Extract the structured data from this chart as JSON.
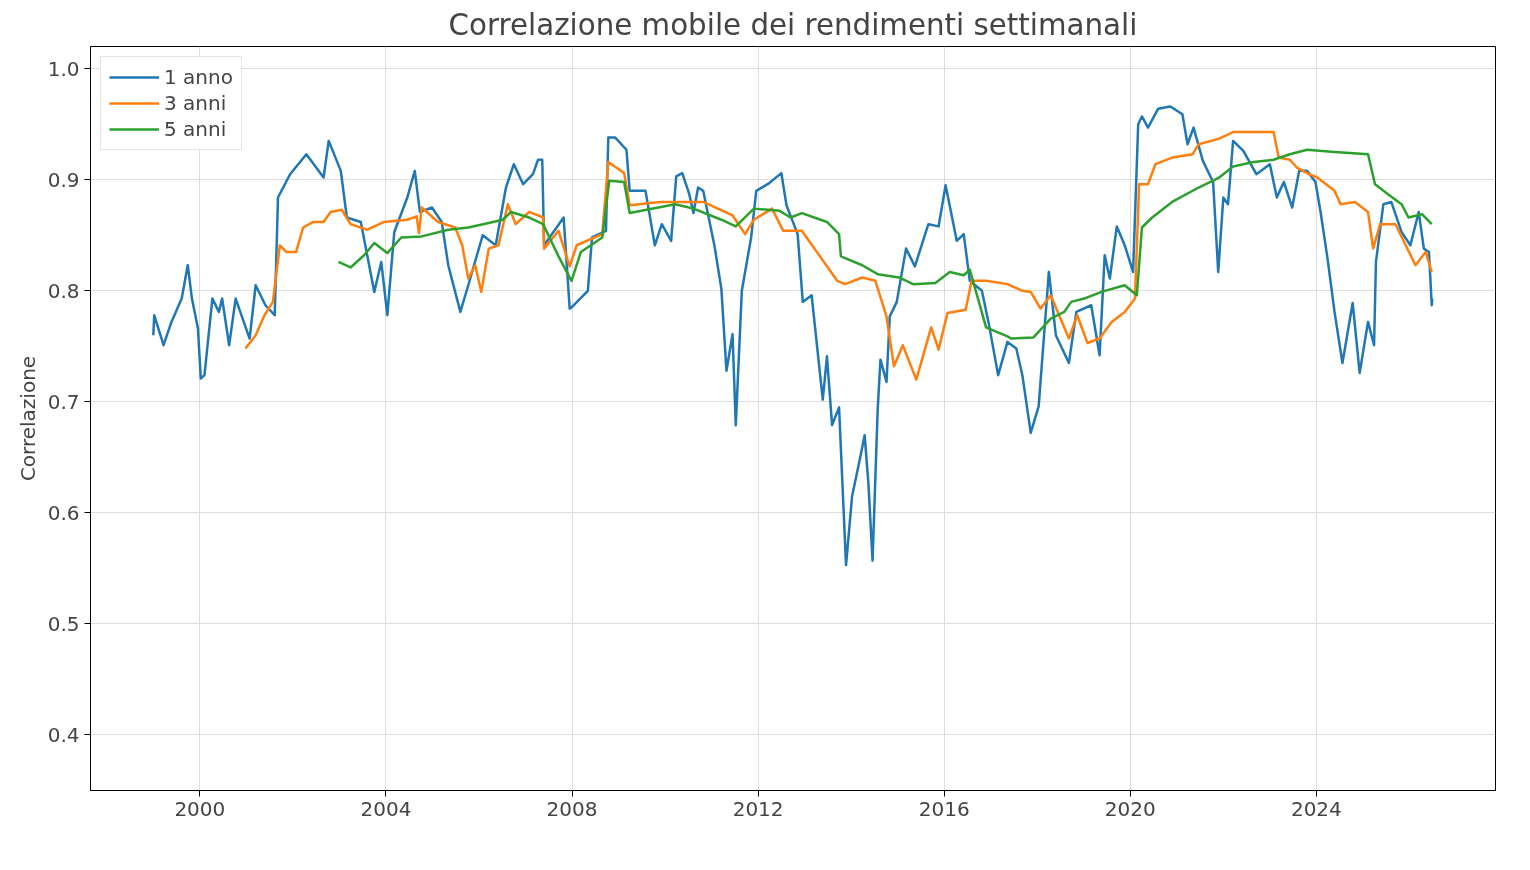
{
  "chart_data": {
    "type": "line",
    "title": "Correlazione mobile dei rendimenti settimanali",
    "ylabel": "Correlazione",
    "xlim": [
      1997.65,
      2027.85
    ],
    "xticks": [
      2000,
      2004,
      2008,
      2012,
      2016,
      2020,
      2024
    ],
    "ylim": [
      0.35,
      1.02
    ],
    "yticks": [
      0.4,
      0.5,
      0.6,
      0.7,
      0.8,
      0.9,
      {
        "value": 1.0,
        "label": "1.0"
      }
    ],
    "grid": true,
    "legend": "top left",
    "line_style": "solid",
    "series": [
      {
        "name": "1 anno",
        "color": "#1f77b4",
        "x": [
          1999.0,
          1999.02,
          1999.22,
          1999.39,
          1999.61,
          1999.74,
          1999.83,
          1999.96,
          2000.02,
          2000.1,
          2000.27,
          2000.41,
          2000.48,
          2000.63,
          2000.77,
          2001.07,
          2001.2,
          2001.41,
          2001.61,
          2001.68,
          2001.94,
          2002.29,
          2002.66,
          2002.77,
          2003.03,
          2003.16,
          2003.46,
          2003.75,
          2003.9,
          2004.03,
          2004.18,
          2004.46,
          2004.62,
          2004.73,
          2004.99,
          2005.2,
          2005.34,
          2005.6,
          2005.77,
          2006.08,
          2006.36,
          2006.58,
          2006.75,
          2006.95,
          2007.16,
          2007.27,
          2007.36,
          2007.4,
          2007.82,
          2007.95,
          2007.99,
          2008.34,
          2008.43,
          2008.73,
          2008.78,
          2008.93,
          2009.17,
          2009.24,
          2009.58,
          2009.78,
          2009.93,
          2010.13,
          2010.24,
          2010.37,
          2010.52,
          2010.61,
          2010.71,
          2010.82,
          2011.06,
          2011.21,
          2011.32,
          2011.45,
          2011.52,
          2011.65,
          2011.85,
          2011.96,
          2012.24,
          2012.5,
          2012.61,
          2012.85,
          2012.96,
          2013.15,
          2013.28,
          2013.39,
          2013.48,
          2013.59,
          2013.74,
          2013.89,
          2014.02,
          2014.18,
          2014.29,
          2014.37,
          2014.46,
          2014.57,
          2014.63,
          2014.76,
          2014.83,
          2014.98,
          2015.18,
          2015.37,
          2015.66,
          2015.88,
          2016.03,
          2016.27,
          2016.42,
          2016.55,
          2016.81,
          2016.96,
          2017.16,
          2017.36,
          2017.55,
          2017.68,
          2017.86,
          2018.03,
          2018.25,
          2018.4,
          2018.68,
          2018.84,
          2019.16,
          2019.34,
          2019.45,
          2019.56,
          2019.71,
          2019.88,
          2020.06,
          2020.17,
          2020.25,
          2020.38,
          2020.6,
          2020.86,
          2021.12,
          2021.23,
          2021.36,
          2021.56,
          2021.78,
          2021.89,
          2022.0,
          2022.1,
          2022.21,
          2022.43,
          2022.71,
          2023.0,
          2023.15,
          2023.3,
          2023.48,
          2023.63,
          2023.8,
          2023.98,
          2024.09,
          2024.24,
          2024.39,
          2024.56,
          2024.78,
          2024.93,
          2025.11,
          2025.24,
          2025.28,
          2025.44,
          2025.61,
          2025.83,
          2026.02,
          2026.2,
          2026.31,
          2026.42,
          2026.48,
          2026.49
        ],
        "values": [
          0.76,
          0.778,
          0.751,
          0.772,
          0.793,
          0.823,
          0.793,
          0.766,
          0.721,
          0.724,
          0.793,
          0.781,
          0.793,
          0.751,
          0.793,
          0.757,
          0.805,
          0.787,
          0.778,
          0.884,
          0.905,
          0.923,
          0.902,
          0.935,
          0.908,
          0.866,
          0.862,
          0.799,
          0.826,
          0.778,
          0.853,
          0.884,
          0.908,
          0.871,
          0.875,
          0.862,
          0.823,
          0.781,
          0.805,
          0.85,
          0.841,
          0.893,
          0.914,
          0.896,
          0.905,
          0.918,
          0.918,
          0.841,
          0.866,
          0.784,
          0.785,
          0.8,
          0.848,
          0.854,
          0.938,
          0.938,
          0.927,
          0.89,
          0.89,
          0.841,
          0.86,
          0.845,
          0.903,
          0.906,
          0.887,
          0.87,
          0.893,
          0.89,
          0.841,
          0.802,
          0.728,
          0.761,
          0.679,
          0.8,
          0.848,
          0.89,
          0.897,
          0.906,
          0.877,
          0.851,
          0.79,
          0.796,
          0.745,
          0.702,
          0.741,
          0.679,
          0.695,
          0.553,
          0.615,
          0.647,
          0.67,
          0.627,
          0.557,
          0.693,
          0.738,
          0.718,
          0.777,
          0.79,
          0.838,
          0.822,
          0.86,
          0.858,
          0.895,
          0.845,
          0.851,
          0.809,
          0.8,
          0.77,
          0.724,
          0.754,
          0.748,
          0.724,
          0.672,
          0.696,
          0.817,
          0.76,
          0.735,
          0.781,
          0.787,
          0.742,
          0.832,
          0.811,
          0.858,
          0.841,
          0.817,
          0.95,
          0.957,
          0.947,
          0.964,
          0.966,
          0.959,
          0.932,
          0.947,
          0.917,
          0.898,
          0.817,
          0.884,
          0.878,
          0.935,
          0.926,
          0.905,
          0.914,
          0.884,
          0.898,
          0.875,
          0.908,
          0.908,
          0.898,
          0.871,
          0.829,
          0.781,
          0.735,
          0.789,
          0.726,
          0.772,
          0.751,
          0.826,
          0.878,
          0.88,
          0.853,
          0.841,
          0.871,
          0.838,
          0.835,
          0.787,
          0.793
        ]
      },
      {
        "name": "3 anni",
        "color": "#ff7f0e",
        "x": [
          2000.98,
          2001.2,
          2001.39,
          2001.57,
          2001.72,
          2001.86,
          2002.07,
          2002.22,
          2002.44,
          2002.66,
          2002.81,
          2003.05,
          2003.24,
          2003.6,
          2003.96,
          2004.46,
          2004.66,
          2004.71,
          2004.77,
          2005.12,
          2005.49,
          2005.64,
          2005.77,
          2005.92,
          2006.05,
          2006.21,
          2006.42,
          2006.62,
          2006.79,
          2007.08,
          2007.38,
          2007.4,
          2007.71,
          2007.95,
          2008.1,
          2008.65,
          2008.78,
          2009.12,
          2009.24,
          2009.89,
          2010.82,
          2011.45,
          2011.72,
          2011.91,
          2012.3,
          2012.54,
          2012.94,
          2013.33,
          2013.7,
          2013.87,
          2014.24,
          2014.52,
          2014.76,
          2014.92,
          2015.11,
          2015.4,
          2015.72,
          2015.88,
          2016.07,
          2016.46,
          2016.59,
          2016.9,
          2017.36,
          2017.68,
          2017.86,
          2018.07,
          2018.29,
          2018.68,
          2018.86,
          2019.08,
          2019.34,
          2019.6,
          2019.88,
          2020.1,
          2020.19,
          2020.38,
          2020.54,
          2020.9,
          2021.34,
          2021.47,
          2021.91,
          2022.21,
          2022.65,
          2023.08,
          2023.19,
          2023.43,
          2023.58,
          2023.84,
          2024.02,
          2024.39,
          2024.52,
          2024.83,
          2025.11,
          2025.22,
          2025.37,
          2025.7,
          2025.92,
          2026.13,
          2026.35,
          2026.48
        ],
        "values": [
          0.748,
          0.76,
          0.778,
          0.79,
          0.841,
          0.835,
          0.835,
          0.857,
          0.862,
          0.862,
          0.871,
          0.873,
          0.86,
          0.855,
          0.862,
          0.864,
          0.867,
          0.852,
          0.875,
          0.862,
          0.857,
          0.841,
          0.811,
          0.823,
          0.799,
          0.838,
          0.841,
          0.878,
          0.86,
          0.871,
          0.866,
          0.838,
          0.854,
          0.822,
          0.841,
          0.851,
          0.916,
          0.906,
          0.877,
          0.88,
          0.88,
          0.868,
          0.851,
          0.864,
          0.874,
          0.854,
          0.854,
          0.831,
          0.809,
          0.806,
          0.812,
          0.809,
          0.777,
          0.732,
          0.751,
          0.72,
          0.767,
          0.747,
          0.78,
          0.783,
          0.809,
          0.809,
          0.806,
          0.8,
          0.799,
          0.784,
          0.796,
          0.757,
          0.778,
          0.753,
          0.757,
          0.772,
          0.781,
          0.793,
          0.896,
          0.896,
          0.914,
          0.92,
          0.923,
          0.932,
          0.937,
          0.943,
          0.943,
          0.943,
          0.92,
          0.918,
          0.911,
          0.905,
          0.902,
          0.89,
          0.878,
          0.88,
          0.871,
          0.838,
          0.86,
          0.86,
          0.841,
          0.823,
          0.835,
          0.817
        ]
      },
      {
        "name": "5 anni",
        "color": "#2ca02c",
        "x": [
          2002.98,
          2003.24,
          2003.53,
          2003.75,
          2004.03,
          2004.33,
          2004.77,
          2005.34,
          2005.77,
          2006.21,
          2006.51,
          2006.69,
          2007.08,
          2007.38,
          2007.71,
          2007.99,
          2008.19,
          2008.65,
          2008.8,
          2009.12,
          2009.24,
          2010.22,
          2010.61,
          2011.21,
          2011.52,
          2011.91,
          2012.46,
          2012.7,
          2012.94,
          2013.48,
          2013.74,
          2013.78,
          2014.24,
          2014.57,
          2015.03,
          2015.33,
          2015.81,
          2016.12,
          2016.42,
          2016.55,
          2016.9,
          2017.36,
          2017.44,
          2017.92,
          2018.29,
          2018.58,
          2018.73,
          2019.01,
          2019.38,
          2019.88,
          2020.14,
          2020.25,
          2020.47,
          2020.9,
          2021.47,
          2021.91,
          2022.21,
          2022.65,
          2023.08,
          2023.43,
          2023.8,
          2024.39,
          2025.11,
          2025.26,
          2025.54,
          2025.83,
          2025.98,
          2026.27,
          2026.48
        ],
        "values": [
          0.826,
          0.821,
          0.832,
          0.843,
          0.834,
          0.848,
          0.849,
          0.855,
          0.857,
          0.861,
          0.864,
          0.871,
          0.866,
          0.86,
          0.831,
          0.809,
          0.835,
          0.848,
          0.899,
          0.898,
          0.87,
          0.878,
          0.874,
          0.864,
          0.858,
          0.874,
          0.872,
          0.866,
          0.87,
          0.862,
          0.851,
          0.831,
          0.823,
          0.815,
          0.812,
          0.806,
          0.807,
          0.817,
          0.814,
          0.819,
          0.767,
          0.759,
          0.757,
          0.758,
          0.775,
          0.781,
          0.79,
          0.793,
          0.799,
          0.805,
          0.796,
          0.857,
          0.866,
          0.88,
          0.893,
          0.902,
          0.912,
          0.916,
          0.918,
          0.923,
          0.927,
          0.925,
          0.923,
          0.896,
          0.887,
          0.878,
          0.866,
          0.869,
          0.86
        ]
      }
    ]
  }
}
